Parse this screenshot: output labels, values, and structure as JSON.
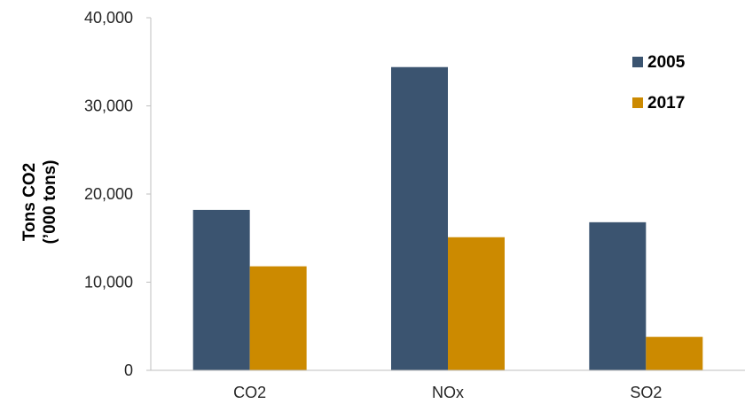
{
  "chart_data": {
    "type": "bar",
    "categories": [
      "CO2",
      "NOx",
      "SO2"
    ],
    "series": [
      {
        "name": "2005",
        "color": "#3b5470",
        "values": [
          18200,
          34400,
          16800
        ]
      },
      {
        "name": "2017",
        "color": "#cc8a00",
        "values": [
          11800,
          15100,
          3800
        ]
      }
    ],
    "ylabel": [
      "Tons CO2",
      "(’000 tons)"
    ],
    "ylim": [
      0,
      40000
    ],
    "yticks": [
      0,
      10000,
      20000,
      30000,
      40000
    ],
    "ytick_labels": [
      "0",
      "10,000",
      "20,000",
      "30,000",
      "40,000"
    ],
    "grid": false,
    "legend_position": "top-right"
  }
}
